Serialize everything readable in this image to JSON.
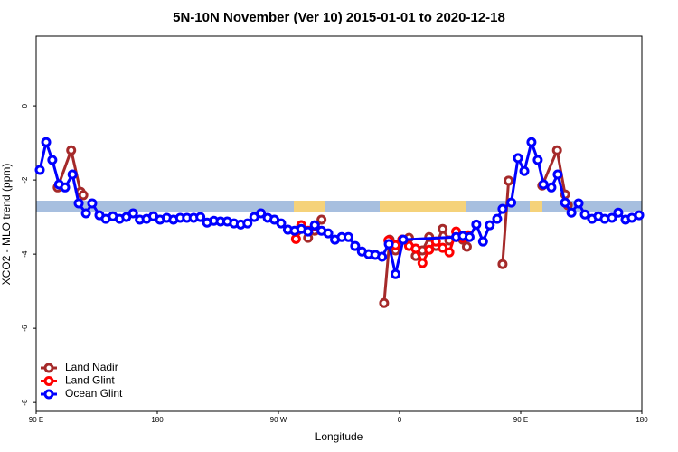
{
  "chart_data": {
    "type": "line",
    "title": "5N-10N November (Ver 10)   2015-01-01 to 2020-12-18",
    "xlabel": "Longitude",
    "ylabel": "XCO2 - MLO trend (ppm)",
    "xlim": [
      90,
      540
    ],
    "ylim": [
      -8.24,
      1.88
    ],
    "xticks": [
      {
        "value": 90,
        "label": "90 E"
      },
      180,
      {
        "value": 270,
        "label": "90 W"
      },
      {
        "value": 360,
        "label": "0"
      },
      {
        "value": 450,
        "label": "90 E"
      },
      {
        "value": 540,
        "label": "180"
      }
    ],
    "yticks": [
      0,
      -2,
      -4,
      -6,
      -8
    ],
    "legend": "bottomleft",
    "series": [
      {
        "name": "Land Nadir",
        "color": "#a52a2a",
        "x": [
          106,
          116,
          123,
          125,
          null,
          284,
          287,
          292,
          297,
          302,
          null,
          348.5,
          352.6,
          357,
          362,
          367,
          372,
          377,
          382,
          387,
          392,
          397,
          402,
          407,
          410,
          null,
          436.5,
          441,
          null,
          466,
          477,
          483,
          485
        ],
        "values": [
          -2.2,
          -1.2,
          -2.32,
          -2.41,
          null,
          -3.37,
          -3.22,
          -3.56,
          -3.37,
          -3.07,
          null,
          -5.32,
          -3.61,
          -3.9,
          -3.61,
          -3.56,
          -4.05,
          -3.9,
          -3.54,
          -3.78,
          -3.32,
          -3.63,
          -3.54,
          -3.61,
          -3.8,
          null,
          -4.27,
          -2.02,
          null,
          -2.15,
          -1.2,
          -2.39,
          -2.68
        ]
      },
      {
        "name": "Land Glint",
        "color": "#ff0000",
        "x": [
          283,
          287,
          292,
          297,
          null,
          351.7,
          357,
          362,
          367,
          372,
          377,
          382,
          387,
          392,
          397,
          402,
          407,
          411
        ],
        "values": [
          -3.59,
          -3.22,
          -3.37,
          -3.24,
          null,
          -3.63,
          -3.76,
          -3.61,
          -3.78,
          -3.85,
          -4.24,
          -3.88,
          -3.66,
          -3.83,
          -3.95,
          -3.39,
          -3.56,
          -3.49
        ]
      },
      {
        "name": "Ocean Glint",
        "color": "#0000ff",
        "x": [
          92.7,
          97.4,
          102,
          107,
          111.5,
          117,
          121.6,
          127,
          131.6,
          137,
          141.7,
          147,
          152,
          157,
          162,
          167,
          172,
          177,
          182,
          187,
          192,
          197,
          202,
          207,
          212,
          217,
          222,
          227,
          232,
          237,
          242,
          247,
          252,
          257,
          262,
          267,
          272,
          277,
          282,
          287,
          292,
          297,
          302,
          307,
          312,
          317,
          322,
          327,
          332,
          337,
          342,
          347,
          352,
          357,
          362.7,
          402,
          407,
          412,
          417,
          422,
          427,
          432.5,
          436.5,
          443,
          448,
          452.7,
          458,
          462.7,
          467,
          472.8,
          477.5,
          483,
          487.7,
          493,
          497.7,
          503,
          507.7,
          512.4,
          517.8,
          522.5,
          527.9,
          532.6,
          538
        ],
        "values": [
          -1.73,
          -0.98,
          -1.46,
          -2.12,
          -2.2,
          -1.85,
          -2.63,
          -2.9,
          -2.63,
          -2.95,
          -3.05,
          -2.98,
          -3.05,
          -3.0,
          -2.9,
          -3.07,
          -3.05,
          -2.98,
          -3.07,
          -3.02,
          -3.07,
          -3.02,
          -3.02,
          -3.02,
          -3.0,
          -3.15,
          -3.1,
          -3.12,
          -3.12,
          -3.17,
          -3.2,
          -3.17,
          -3.0,
          -2.9,
          -3.02,
          -3.07,
          -3.17,
          -3.34,
          -3.37,
          -3.32,
          -3.39,
          -3.22,
          -3.37,
          -3.44,
          -3.61,
          -3.54,
          -3.54,
          -3.78,
          -3.93,
          -4.0,
          -4.02,
          -4.07,
          -3.73,
          -4.54,
          -3.61,
          -3.54,
          -3.51,
          -3.54,
          -3.2,
          -3.66,
          -3.22,
          -3.05,
          -2.78,
          -2.61,
          -1.41,
          -1.76,
          -0.98,
          -1.46,
          -2.12,
          -2.2,
          -1.85,
          -2.61,
          -2.88,
          -2.63,
          -2.93,
          -3.05,
          -2.98,
          -3.05,
          -3.02,
          -2.88,
          -3.07,
          -3.02,
          -2.95
        ]
      }
    ]
  }
}
